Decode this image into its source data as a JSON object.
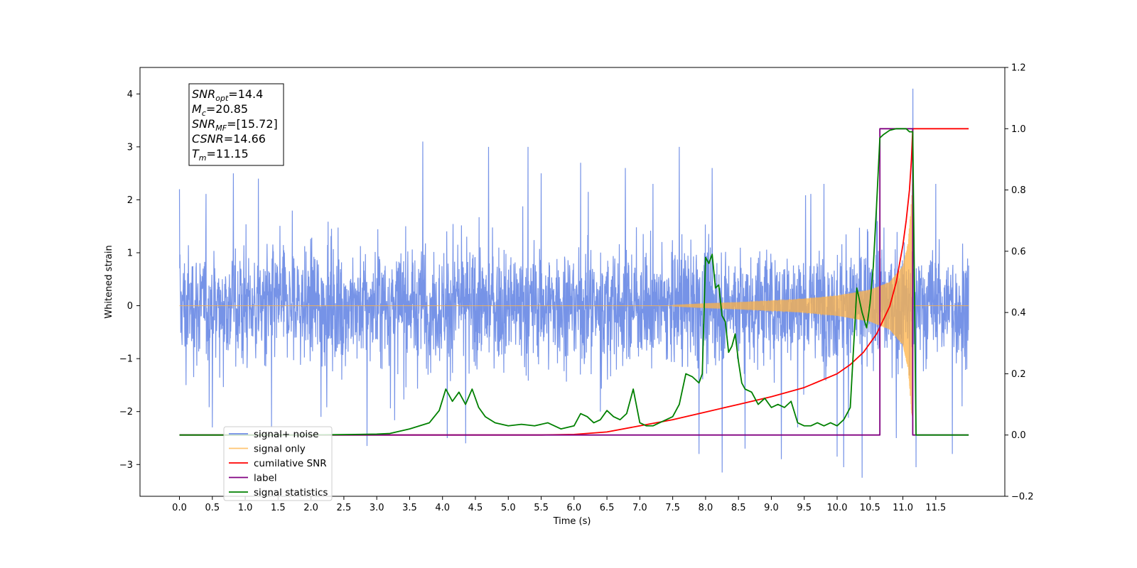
{
  "chart_data": {
    "type": "line",
    "xlabel": "Time (s)",
    "ylabel": "Whitened strain",
    "xlim": [
      -0.6,
      12.55
    ],
    "ylim": [
      -3.6,
      4.5
    ],
    "y2lim": [
      -0.2,
      1.2
    ],
    "x_ticks": [
      "0.0",
      "0.5",
      "1.0",
      "1.5",
      "2.0",
      "2.5",
      "3.0",
      "3.5",
      "4.0",
      "4.5",
      "5.0",
      "5.5",
      "6.0",
      "6.5",
      "7.0",
      "7.5",
      "8.0",
      "8.5",
      "9.0",
      "9.5",
      "10.0",
      "10.5",
      "11.0",
      "11.5"
    ],
    "x_tick_values": [
      0,
      0.5,
      1,
      1.5,
      2,
      2.5,
      3,
      3.5,
      4,
      4.5,
      5,
      5.5,
      6,
      6.5,
      7,
      7.5,
      8,
      8.5,
      9,
      9.5,
      10,
      10.5,
      11,
      11.5
    ],
    "y_ticks": [
      "4",
      "3",
      "2",
      "1",
      "0",
      "−1",
      "−2",
      "−3"
    ],
    "y_tick_values": [
      4,
      3,
      2,
      1,
      0,
      -1,
      -2,
      -3
    ],
    "y2_ticks": [
      "1.2",
      "1.0",
      "0.8",
      "0.6",
      "0.4",
      "0.2",
      "0.0",
      "−0.2"
    ],
    "y2_tick_values": [
      1.2,
      1.0,
      0.8,
      0.6,
      0.4,
      0.2,
      0.0,
      -0.2
    ],
    "legend": {
      "placement": "lower-left",
      "entries": [
        {
          "label": "signal+ noise",
          "color": "#6f8de6"
        },
        {
          "label": "signal only",
          "color": "#ffc470"
        },
        {
          "label": "cumilative SNR",
          "color": "#ff0000"
        },
        {
          "label": "label",
          "color": "#800080"
        },
        {
          "label": "signal statistics",
          "color": "#008000"
        }
      ]
    },
    "annotation": {
      "lines": [
        {
          "main": "SNR",
          "sub": "opt",
          "rest": "=14.4"
        },
        {
          "main": "M",
          "sub": "c",
          "rest": "=20.85"
        },
        {
          "main": "SNR",
          "sub": "MF",
          "rest": "=[15.72]"
        },
        {
          "main": "CSNR",
          "sub": "",
          "rest": "=14.66"
        },
        {
          "main": "T",
          "sub": "m",
          "rest": "=11.15"
        }
      ]
    },
    "signal_noise": {
      "x_start": 0.0,
      "x_end": 12.0,
      "upper_envelope": [
        1.4,
        1.3,
        1.5,
        1.3,
        1.4,
        1.3,
        1.5,
        1.4,
        1.3,
        1.4,
        1.5,
        1.3,
        1.4,
        1.3,
        1.5,
        1.4,
        1.3,
        1.4,
        1.5,
        1.3,
        1.4,
        1.3,
        1.5,
        1.4,
        1.3
      ],
      "lower_envelope": [
        -1.4,
        -1.3,
        -1.5,
        -1.3,
        -1.4,
        -1.3,
        -1.5,
        -1.4,
        -1.3,
        -1.4,
        -1.5,
        -1.3,
        -1.4,
        -1.3,
        -1.5,
        -1.4,
        -1.3,
        -1.4,
        -1.5,
        -1.3,
        -1.4,
        -1.3,
        -1.5,
        -1.4,
        -1.3
      ],
      "spikes": [
        [
          0.0,
          2.2
        ],
        [
          0.1,
          -1.5
        ],
        [
          0.5,
          -2.3
        ],
        [
          0.82,
          2.5
        ],
        [
          1.2,
          2.4
        ],
        [
          1.4,
          -2.3
        ],
        [
          2.15,
          -2.1
        ],
        [
          2.85,
          -2.65
        ],
        [
          3.7,
          3.1
        ],
        [
          4.07,
          -2.5
        ],
        [
          4.35,
          -2.6
        ],
        [
          4.7,
          3.0
        ],
        [
          5.3,
          3.0
        ],
        [
          5.5,
          2.5
        ],
        [
          6.1,
          2.7
        ],
        [
          6.4,
          -2.0
        ],
        [
          6.78,
          2.6
        ],
        [
          7.2,
          2.3
        ],
        [
          7.6,
          3.0
        ],
        [
          7.9,
          -2.8
        ],
        [
          8.1,
          2.6
        ],
        [
          8.25,
          -3.15
        ],
        [
          8.6,
          -2.7
        ],
        [
          9.15,
          -2.9
        ],
        [
          9.4,
          -2.3
        ],
        [
          9.8,
          2.3
        ],
        [
          10.0,
          -2.85
        ],
        [
          10.1,
          -3.05
        ],
        [
          10.38,
          -3.25
        ],
        [
          10.6,
          2.0
        ],
        [
          10.9,
          -2.5
        ],
        [
          11.15,
          4.1
        ],
        [
          11.2,
          -3.05
        ],
        [
          11.5,
          2.3
        ],
        [
          11.75,
          -2.8
        ],
        [
          11.9,
          -1.9
        ]
      ]
    },
    "signal_only": {
      "x_start": 7.5,
      "x_end": 11.15,
      "amplitude_points": [
        [
          0,
          0.0
        ],
        [
          7.5,
          0.01
        ],
        [
          8.0,
          0.04
        ],
        [
          8.5,
          0.06
        ],
        [
          9.0,
          0.09
        ],
        [
          9.5,
          0.13
        ],
        [
          10.0,
          0.19
        ],
        [
          10.5,
          0.3
        ],
        [
          10.8,
          0.45
        ],
        [
          11.0,
          0.75
        ],
        [
          11.08,
          1.2
        ],
        [
          11.13,
          2.0
        ],
        [
          11.15,
          2.45
        ]
      ],
      "baseline": 0.0
    },
    "series": [
      {
        "name": "cumilative SNR",
        "color": "#ff0000",
        "x": [
          0.0,
          5.5,
          6.0,
          6.5,
          7.0,
          7.5,
          8.0,
          8.5,
          9.0,
          9.5,
          10.0,
          10.2,
          10.4,
          10.6,
          10.8,
          10.9,
          11.0,
          11.05,
          11.1,
          11.13,
          11.15,
          11.16,
          12.0
        ],
        "y": [
          0.0,
          0.0,
          0.002,
          0.01,
          0.03,
          0.05,
          0.075,
          0.1,
          0.125,
          0.155,
          0.2,
          0.23,
          0.27,
          0.33,
          0.42,
          0.5,
          0.62,
          0.7,
          0.8,
          0.9,
          1.0,
          1.0,
          1.0
        ]
      },
      {
        "name": "label",
        "color": "#800080",
        "x": [
          0.0,
          10.65,
          10.65,
          11.15,
          11.15,
          12.0
        ],
        "y": [
          0.0,
          0.0,
          1.0,
          1.0,
          0.0,
          0.0
        ]
      },
      {
        "name": "signal statistics",
        "color": "#008000",
        "x": [
          0.0,
          1.0,
          2.0,
          3.0,
          3.2,
          3.5,
          3.8,
          3.95,
          4.05,
          4.15,
          4.25,
          4.35,
          4.45,
          4.55,
          4.65,
          4.8,
          5.0,
          5.2,
          5.4,
          5.6,
          5.8,
          6.0,
          6.1,
          6.2,
          6.3,
          6.4,
          6.5,
          6.6,
          6.7,
          6.8,
          6.9,
          7.0,
          7.1,
          7.2,
          7.3,
          7.4,
          7.5,
          7.6,
          7.7,
          7.8,
          7.9,
          7.95,
          8.0,
          8.05,
          8.1,
          8.15,
          8.2,
          8.25,
          8.3,
          8.35,
          8.4,
          8.45,
          8.5,
          8.55,
          8.6,
          8.7,
          8.8,
          8.9,
          9.0,
          9.1,
          9.2,
          9.3,
          9.4,
          9.5,
          9.6,
          9.7,
          9.8,
          9.9,
          10.0,
          10.1,
          10.2,
          10.3,
          10.38,
          10.45,
          10.5,
          10.55,
          10.6,
          10.65,
          10.7,
          10.8,
          10.9,
          11.0,
          11.05,
          11.1,
          11.15,
          11.2,
          11.3,
          12.0
        ],
        "y": [
          0.0,
          0.0,
          0.0,
          0.003,
          0.005,
          0.02,
          0.04,
          0.08,
          0.15,
          0.11,
          0.14,
          0.1,
          0.15,
          0.09,
          0.06,
          0.04,
          0.03,
          0.035,
          0.03,
          0.04,
          0.02,
          0.03,
          0.07,
          0.06,
          0.04,
          0.05,
          0.08,
          0.06,
          0.05,
          0.07,
          0.15,
          0.04,
          0.03,
          0.03,
          0.04,
          0.05,
          0.06,
          0.1,
          0.2,
          0.19,
          0.17,
          0.2,
          0.58,
          0.56,
          0.59,
          0.48,
          0.49,
          0.39,
          0.37,
          0.27,
          0.29,
          0.33,
          0.24,
          0.17,
          0.15,
          0.14,
          0.1,
          0.12,
          0.09,
          0.1,
          0.09,
          0.11,
          0.04,
          0.03,
          0.03,
          0.04,
          0.03,
          0.04,
          0.03,
          0.05,
          0.09,
          0.48,
          0.4,
          0.35,
          0.43,
          0.55,
          0.75,
          0.97,
          0.98,
          0.995,
          1.0,
          1.0,
          1.0,
          0.99,
          0.99,
          0.0,
          0.0,
          0.0
        ]
      }
    ]
  }
}
